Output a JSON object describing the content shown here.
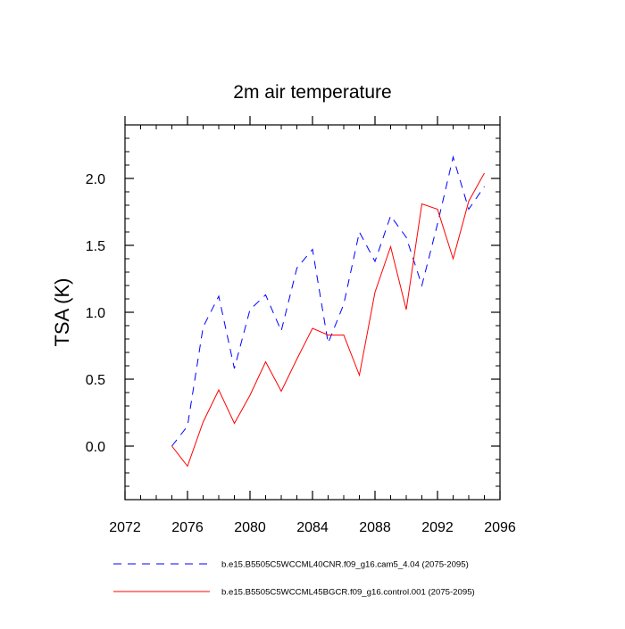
{
  "chart_data": {
    "type": "line",
    "title": "2m air temperature",
    "xlabel": "",
    "ylabel": "TSA  (K)",
    "xlim": [
      2072,
      2096
    ],
    "ylim": [
      -0.4,
      2.4
    ],
    "x_ticks": [
      2072,
      2076,
      2080,
      2084,
      2088,
      2092,
      2096
    ],
    "x_tick_labels": [
      "2072",
      "2076",
      "2080",
      "2084",
      "2088",
      "2092",
      "2096"
    ],
    "y_ticks": [
      0.0,
      0.5,
      1.0,
      1.5,
      2.0
    ],
    "y_tick_labels": [
      "0.0",
      "0.5",
      "1.0",
      "1.5",
      "2.0"
    ],
    "grid": false,
    "legend_position": "bottom",
    "x": [
      2075,
      2076,
      2077,
      2078,
      2079,
      2080,
      2081,
      2082,
      2083,
      2084,
      2085,
      2086,
      2087,
      2088,
      2089,
      2090,
      2091,
      2092,
      2093,
      2094,
      2095
    ],
    "series": [
      {
        "name": "b.e15.B5505C5WCCML40CNR.f09_g16.cam5_4.04 (2075-2095)",
        "color": "#0000ff",
        "dash": "dashed",
        "values": [
          0.0,
          0.15,
          0.89,
          1.12,
          0.58,
          1.02,
          1.13,
          0.86,
          1.33,
          1.47,
          0.77,
          1.06,
          1.6,
          1.38,
          1.72,
          1.56,
          1.2,
          1.66,
          2.16,
          1.77,
          1.94
        ]
      },
      {
        "name": "b.e15.B5505C5WCCML45BGCR.f09_g16.control.001 (2075-2095)",
        "color": "#ff0000",
        "dash": "solid",
        "values": [
          0.0,
          -0.15,
          0.18,
          0.42,
          0.17,
          0.38,
          0.63,
          0.41,
          0.65,
          0.88,
          0.83,
          0.83,
          0.53,
          1.15,
          1.49,
          1.02,
          1.81,
          1.77,
          1.4,
          1.83,
          2.04
        ]
      }
    ]
  }
}
